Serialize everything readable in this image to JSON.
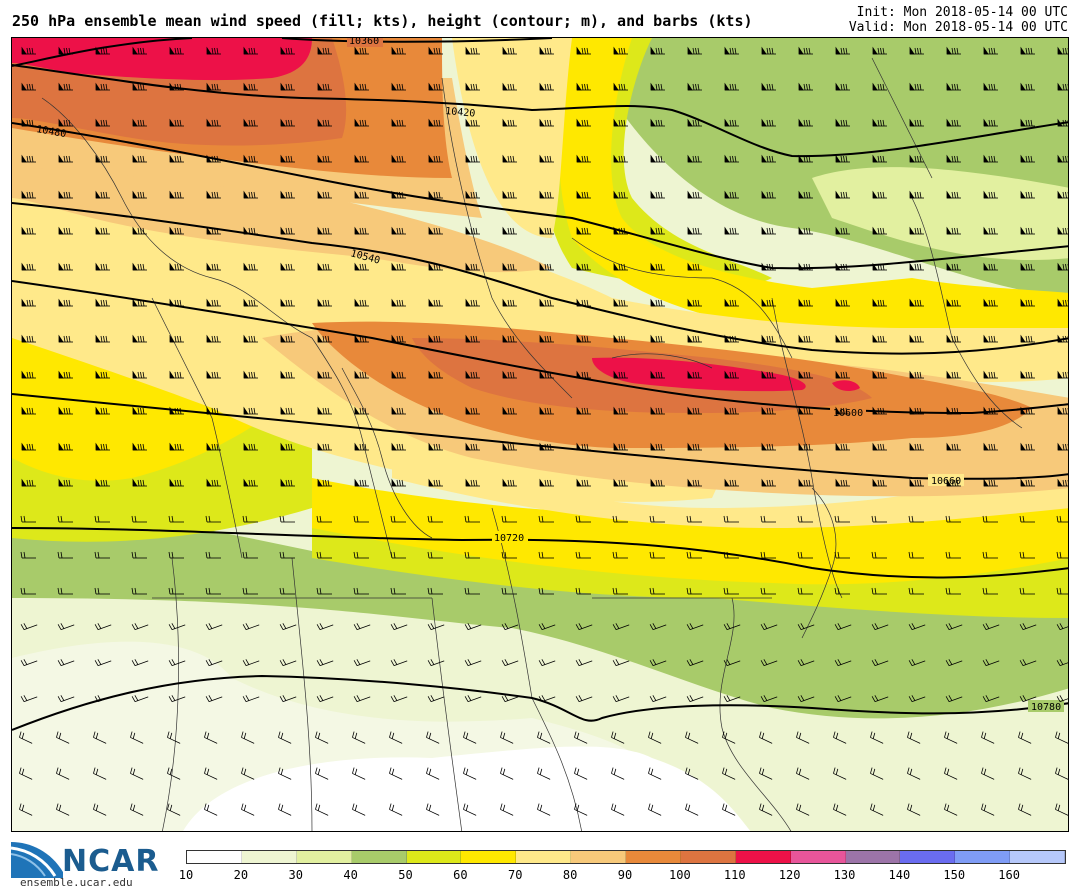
{
  "header": {
    "title": "250 hPa ensemble mean wind speed (fill; kts), height (contour; m), and barbs (kts)",
    "init": "Init: Mon 2018-05-14 00 UTC",
    "valid": "Valid: Mon 2018-05-14 00 UTC"
  },
  "contours": {
    "c10360": "10360",
    "c10420": "10420",
    "c10480": "10480",
    "c10540": "10540",
    "c10600": "10600",
    "c10660": "10660",
    "c10720": "10720",
    "c10780": "10780"
  },
  "colorbar": {
    "levels": [
      "10",
      "20",
      "30",
      "40",
      "50",
      "60",
      "70",
      "80",
      "90",
      "100",
      "110",
      "120",
      "130",
      "140",
      "150",
      "160"
    ],
    "colors": [
      "#ffffff",
      "#eef5d2",
      "#e2f0a0",
      "#a8cb6a",
      "#dde81a",
      "#ffe800",
      "#ffe98a",
      "#f7c97a",
      "#e8893a",
      "#dd7440",
      "#ed1148",
      "#e8559a",
      "#9c74a8",
      "#6a6cf0",
      "#7f9cf6",
      "#b6c8fa"
    ]
  },
  "logo": {
    "name": "NCAR",
    "url": "ensemble.ucar.edu"
  }
}
